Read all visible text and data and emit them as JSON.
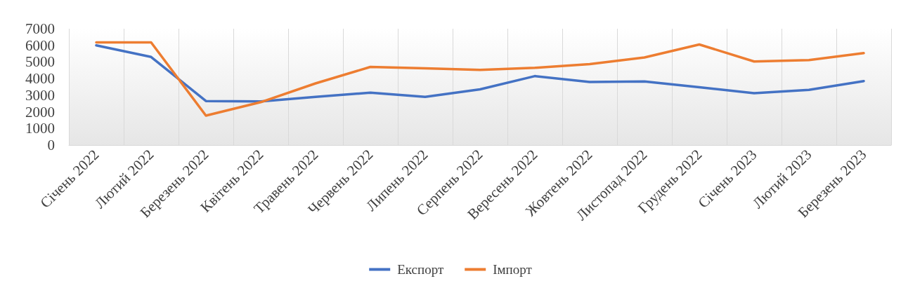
{
  "chart_data": {
    "type": "line",
    "categories": [
      "Січень 2022",
      "Лютий 2022",
      "Березень 2022",
      "Квітень 2022",
      "Травень 2022",
      "Червень 2022",
      "Липень 2022",
      "Серпень 2022",
      "Вересень 2022",
      "Жовтень 2022",
      "Листопад 2022",
      "Грудень 2022",
      "Січень 2023",
      "Лютий 2023",
      "Березень 2023"
    ],
    "series": [
      {
        "name": "Експорт",
        "color": "#4472c4",
        "values": [
          6000,
          5300,
          2650,
          2620,
          2900,
          3150,
          2900,
          3350,
          4150,
          3800,
          3830,
          3480,
          3120,
          3320,
          3850
        ]
      },
      {
        "name": "Імпорт",
        "color": "#ed7d31",
        "values": [
          6180,
          6180,
          1770,
          2580,
          3710,
          4700,
          4620,
          4520,
          4650,
          4870,
          5270,
          6050,
          5030,
          5110,
          5530
        ]
      }
    ],
    "ylim": [
      0,
      7000
    ],
    "yticks": [
      0,
      1000,
      2000,
      3000,
      4000,
      5000,
      6000,
      7000
    ],
    "grid": "x",
    "legend": "bottom",
    "marker": "none",
    "line_style": "solid"
  }
}
